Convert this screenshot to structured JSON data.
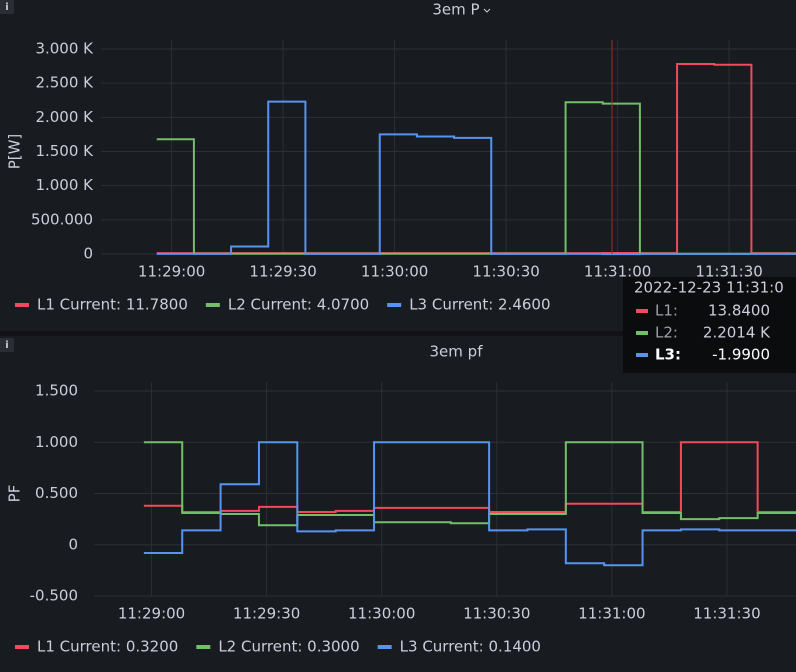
{
  "chart_data": [
    {
      "type": "line",
      "title": "3em P",
      "ylabel": "P[W]",
      "x": [
        "11:28:56",
        "11:29:06",
        "11:29:16",
        "11:29:26",
        "11:29:36",
        "11:29:46",
        "11:29:56",
        "11:30:06",
        "11:30:16",
        "11:30:26",
        "11:30:36",
        "11:30:46",
        "11:30:56",
        "11:31:06",
        "11:31:16",
        "11:31:26",
        "11:31:36",
        "11:31:46"
      ],
      "series": [
        {
          "name": "L1",
          "color": "#f2495c",
          "values": [
            12,
            12,
            12,
            12,
            12,
            12,
            12,
            12,
            12,
            12,
            12,
            12,
            13.84,
            12,
            2780,
            2770,
            12,
            11.78
          ]
        },
        {
          "name": "L2",
          "color": "#73bf69",
          "values": [
            1680,
            4,
            4,
            4,
            4,
            4,
            4,
            4,
            4,
            4,
            4,
            2220,
            2201.4,
            4,
            4,
            4,
            4,
            4.07
          ]
        },
        {
          "name": "L3",
          "color": "#5794f2",
          "values": [
            2,
            2,
            110,
            2230,
            2,
            2,
            1750,
            1720,
            1700,
            2,
            2,
            2,
            -1.99,
            2,
            2,
            2,
            2,
            2.46
          ]
        }
      ],
      "legend_labels": [
        "L1 Current: 11.7800",
        "L2 Current: 4.0700",
        "L3 Current: 2.4600"
      ],
      "xlim": [
        "11:28:41",
        "11:31:48"
      ],
      "xticks": [
        "11:29:00",
        "11:29:30",
        "11:30:00",
        "11:30:30",
        "11:31:00",
        "11:31:30"
      ],
      "ylim": [
        0,
        3000
      ],
      "yticks": [
        0,
        {
          "value": 500,
          "label": "500.000"
        },
        {
          "value": 1000,
          "label": "1.000 K"
        },
        {
          "value": 1500,
          "label": "1.500 K"
        },
        {
          "value": 2000,
          "label": "2.000 K"
        },
        {
          "value": 2500,
          "label": "2.500 K"
        },
        {
          "value": 3000,
          "label": "3.000 K"
        }
      ],
      "grid": true
    },
    {
      "type": "line",
      "title": "3em pf",
      "ylabel": "PF",
      "x": [
        "11:28:58",
        "11:29:08",
        "11:29:18",
        "11:29:28",
        "11:29:38",
        "11:29:48",
        "11:29:58",
        "11:30:08",
        "11:30:18",
        "11:30:28",
        "11:30:38",
        "11:30:48",
        "11:30:58",
        "11:31:08",
        "11:31:18",
        "11:31:28",
        "11:31:38",
        "11:31:48"
      ],
      "series": [
        {
          "name": "L1",
          "color": "#f2495c",
          "values": [
            0.38,
            0.32,
            0.33,
            0.37,
            0.32,
            0.33,
            0.36,
            0.36,
            0.36,
            0.32,
            0.32,
            0.4,
            0.4,
            0.32,
            1.0,
            1.0,
            0.32,
            0.32
          ]
        },
        {
          "name": "L2",
          "color": "#73bf69",
          "values": [
            1.0,
            0.31,
            0.3,
            0.19,
            0.29,
            0.29,
            0.22,
            0.22,
            0.21,
            0.3,
            0.3,
            1.0,
            1.0,
            0.31,
            0.25,
            0.26,
            0.31,
            0.3
          ]
        },
        {
          "name": "L3",
          "color": "#5794f2",
          "values": [
            -0.08,
            0.14,
            0.59,
            1.0,
            0.13,
            0.14,
            1.0,
            1.0,
            1.0,
            0.14,
            0.15,
            -0.18,
            -0.2,
            0.14,
            0.15,
            0.14,
            0.14,
            0.14
          ]
        }
      ],
      "legend_labels": [
        "L1 Current: 0.3200",
        "L2 Current: 0.3000",
        "L3 Current: 0.1400"
      ],
      "xlim": [
        "11:28:45",
        "11:31:48"
      ],
      "xticks": [
        "11:29:00",
        "11:29:30",
        "11:30:00",
        "11:30:30",
        "11:31:00",
        "11:31:30"
      ],
      "ylim": [
        -0.5,
        1.5
      ],
      "yticks": [
        {
          "value": -0.5,
          "label": "-0.500"
        },
        0,
        {
          "value": 0.5,
          "label": "0.500"
        },
        {
          "value": 1,
          "label": "1.000"
        },
        {
          "value": 1.5,
          "label": "1.500"
        }
      ],
      "grid": true
    }
  ],
  "tooltip": {
    "time": "2022-12-23 11:31:0",
    "rows": [
      {
        "label": "L1:",
        "value": "13.8400",
        "color": "#f2495c"
      },
      {
        "label": "L2:",
        "value": "2.2014 K",
        "color": "#73bf69"
      },
      {
        "label": "L3:",
        "value": "-1.9900",
        "color": "#5794f2"
      }
    ]
  }
}
